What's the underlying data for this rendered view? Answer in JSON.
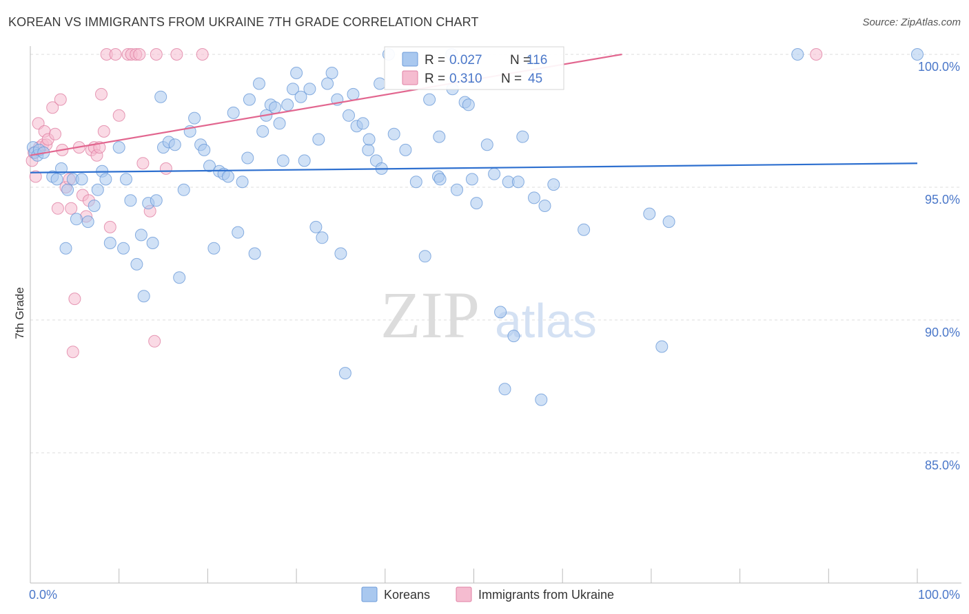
{
  "title": "KOREAN VS IMMIGRANTS FROM UKRAINE 7TH GRADE CORRELATION CHART",
  "source": "Source: ZipAtlas.com",
  "watermark": {
    "zip": "ZIP",
    "atlas": "atlas"
  },
  "colors": {
    "blue_fill": "#a9c8ef",
    "blue_stroke": "#6a9ad8",
    "blue_line": "#2d6fcf",
    "pink_fill": "#f5bcd0",
    "pink_stroke": "#e07fa3",
    "pink_line": "#e2668f",
    "tick_text": "#4a77c9",
    "grid": "#dddddd"
  },
  "legend": {
    "series1": {
      "r_label": "R = ",
      "r_value": "0.027",
      "n_label": "N = ",
      "n_value": "116"
    },
    "series2": {
      "r_label": "R = ",
      "r_value": "0.310",
      "n_label": "N = ",
      "n_value": "45"
    }
  },
  "bottom_legend": [
    "Koreans",
    "Immigrants from Ukraine"
  ],
  "chart_data": {
    "type": "scatter",
    "title": "KOREAN VS IMMIGRANTS FROM UKRAINE 7TH GRADE CORRELATION CHART",
    "xlabel": "",
    "ylabel": "7th Grade",
    "xlim": [
      0,
      100
    ],
    "ylim": [
      80.1,
      100.8
    ],
    "x_tick_labels": [
      {
        "value": 0,
        "label": "0.0%"
      },
      {
        "value": 100,
        "label": "100.0%"
      }
    ],
    "y_tick_labels": [
      {
        "value": 100,
        "label": "100.0%"
      },
      {
        "value": 95,
        "label": "95.0%"
      },
      {
        "value": 90,
        "label": "90.0%"
      },
      {
        "value": 85,
        "label": "85.0%"
      }
    ],
    "x_minor_ticks": [
      0,
      10,
      20,
      30,
      40,
      50,
      60,
      70,
      80,
      90,
      100
    ],
    "series": [
      {
        "name": "Koreans",
        "R": 0.027,
        "N": 116,
        "trend": {
          "x": [
            0,
            100
          ],
          "y": [
            95.55,
            95.9
          ]
        },
        "points": [
          [
            0.3,
            96.5
          ],
          [
            0.5,
            96.3
          ],
          [
            0.8,
            96.2
          ],
          [
            1.0,
            96.4
          ],
          [
            1.5,
            96.3
          ],
          [
            2.5,
            95.4
          ],
          [
            3.0,
            95.3
          ],
          [
            3.5,
            95.7
          ],
          [
            4.0,
            92.7
          ],
          [
            4.2,
            94.9
          ],
          [
            4.8,
            95.3
          ],
          [
            5.2,
            93.8
          ],
          [
            5.8,
            95.3
          ],
          [
            6.5,
            93.7
          ],
          [
            7.2,
            94.3
          ],
          [
            7.6,
            94.9
          ],
          [
            8.1,
            95.6
          ],
          [
            8.5,
            95.3
          ],
          [
            9.0,
            92.9
          ],
          [
            10.0,
            96.5
          ],
          [
            10.5,
            92.7
          ],
          [
            10.8,
            95.3
          ],
          [
            11.3,
            94.5
          ],
          [
            12.0,
            92.1
          ],
          [
            12.5,
            93.2
          ],
          [
            12.8,
            90.9
          ],
          [
            13.3,
            94.4
          ],
          [
            13.8,
            92.9
          ],
          [
            14.2,
            94.5
          ],
          [
            14.7,
            98.4
          ],
          [
            15.0,
            96.5
          ],
          [
            15.6,
            96.7
          ],
          [
            16.3,
            96.6
          ],
          [
            16.8,
            91.6
          ],
          [
            17.3,
            94.9
          ],
          [
            18.0,
            97.1
          ],
          [
            18.5,
            97.6
          ],
          [
            19.2,
            96.6
          ],
          [
            19.6,
            96.4
          ],
          [
            20.2,
            95.8
          ],
          [
            20.7,
            92.7
          ],
          [
            21.3,
            95.6
          ],
          [
            21.8,
            95.5
          ],
          [
            22.3,
            95.4
          ],
          [
            22.9,
            97.8
          ],
          [
            23.4,
            93.3
          ],
          [
            23.9,
            95.2
          ],
          [
            24.5,
            96.1
          ],
          [
            24.7,
            98.3
          ],
          [
            25.3,
            92.5
          ],
          [
            25.8,
            98.9
          ],
          [
            26.2,
            97.1
          ],
          [
            26.6,
            97.7
          ],
          [
            27.1,
            98.1
          ],
          [
            27.6,
            98.0
          ],
          [
            28.1,
            97.4
          ],
          [
            28.5,
            96.0
          ],
          [
            29.0,
            98.1
          ],
          [
            29.6,
            98.7
          ],
          [
            30.0,
            99.3
          ],
          [
            30.5,
            98.4
          ],
          [
            30.9,
            96.0
          ],
          [
            31.5,
            98.7
          ],
          [
            32.2,
            93.5
          ],
          [
            32.5,
            96.8
          ],
          [
            32.9,
            93.1
          ],
          [
            33.5,
            98.9
          ],
          [
            34.0,
            99.3
          ],
          [
            34.6,
            98.3
          ],
          [
            35.0,
            92.5
          ],
          [
            35.5,
            88.0
          ],
          [
            35.9,
            97.7
          ],
          [
            36.4,
            98.5
          ],
          [
            36.8,
            97.3
          ],
          [
            37.5,
            97.4
          ],
          [
            38.1,
            96.4
          ],
          [
            38.2,
            96.8
          ],
          [
            39.0,
            96.0
          ],
          [
            39.4,
            98.9
          ],
          [
            39.6,
            95.7
          ],
          [
            40.4,
            100.0
          ],
          [
            41.0,
            97.0
          ],
          [
            42.3,
            96.4
          ],
          [
            43.5,
            95.2
          ],
          [
            44.5,
            92.4
          ],
          [
            45.0,
            98.3
          ],
          [
            46.0,
            95.4
          ],
          [
            46.1,
            96.9
          ],
          [
            46.2,
            95.3
          ],
          [
            47.5,
            100.0
          ],
          [
            47.6,
            98.7
          ],
          [
            48.1,
            94.9
          ],
          [
            49.0,
            98.2
          ],
          [
            49.4,
            98.1
          ],
          [
            49.8,
            95.3
          ],
          [
            50.3,
            94.4
          ],
          [
            51.5,
            96.6
          ],
          [
            52.3,
            95.5
          ],
          [
            53.0,
            90.3
          ],
          [
            53.5,
            87.4
          ],
          [
            53.9,
            95.2
          ],
          [
            54.5,
            89.4
          ],
          [
            55.0,
            95.2
          ],
          [
            55.5,
            96.9
          ],
          [
            56.8,
            94.6
          ],
          [
            57.6,
            87.0
          ],
          [
            58.0,
            94.3
          ],
          [
            59.0,
            95.1
          ],
          [
            62.4,
            93.4
          ],
          [
            69.8,
            94.0
          ],
          [
            71.2,
            89.0
          ],
          [
            72.0,
            93.7
          ],
          [
            86.5,
            100.0
          ],
          [
            100.0,
            100.0
          ]
        ]
      },
      {
        "name": "Immigrants from Ukraine",
        "R": 0.31,
        "N": 45,
        "trend": {
          "x": [
            0,
            66.7
          ],
          "y": [
            96.2,
            100.0
          ]
        },
        "points": [
          [
            0.2,
            96.0
          ],
          [
            0.4,
            96.3
          ],
          [
            0.6,
            95.4
          ],
          [
            0.9,
            97.4
          ],
          [
            1.0,
            96.5
          ],
          [
            1.4,
            96.6
          ],
          [
            1.6,
            97.1
          ],
          [
            1.8,
            96.6
          ],
          [
            2.0,
            96.8
          ],
          [
            2.5,
            98.0
          ],
          [
            2.8,
            97.0
          ],
          [
            3.1,
            94.2
          ],
          [
            3.4,
            98.3
          ],
          [
            3.6,
            96.4
          ],
          [
            4.0,
            95.0
          ],
          [
            4.4,
            95.3
          ],
          [
            4.6,
            94.2
          ],
          [
            4.8,
            88.8
          ],
          [
            5.0,
            90.8
          ],
          [
            5.5,
            96.5
          ],
          [
            5.9,
            94.7
          ],
          [
            6.3,
            93.9
          ],
          [
            6.6,
            94.5
          ],
          [
            6.9,
            96.4
          ],
          [
            7.2,
            96.5
          ],
          [
            7.5,
            96.2
          ],
          [
            7.8,
            96.5
          ],
          [
            8.0,
            98.5
          ],
          [
            8.3,
            97.1
          ],
          [
            8.6,
            100.0
          ],
          [
            9.0,
            93.5
          ],
          [
            9.6,
            100.0
          ],
          [
            10.0,
            97.7
          ],
          [
            11.0,
            100.0
          ],
          [
            11.4,
            100.0
          ],
          [
            11.9,
            100.0
          ],
          [
            12.3,
            100.0
          ],
          [
            12.7,
            95.9
          ],
          [
            13.5,
            94.1
          ],
          [
            14.0,
            89.2
          ],
          [
            14.2,
            100.0
          ],
          [
            15.3,
            95.7
          ],
          [
            16.5,
            100.0
          ],
          [
            19.4,
            100.0
          ],
          [
            88.6,
            100.0
          ]
        ]
      }
    ]
  }
}
